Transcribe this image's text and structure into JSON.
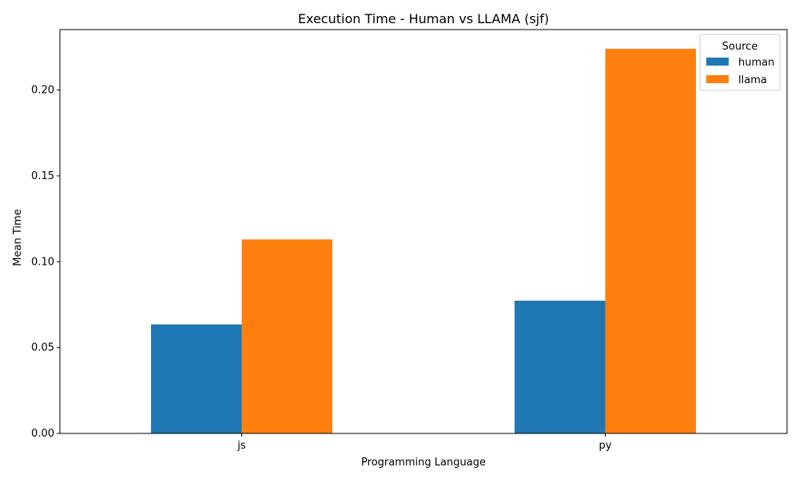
{
  "chart_data": {
    "type": "bar",
    "title": "Execution Time - Human vs LLAMA (sjf)",
    "xlabel": "Programming Language",
    "ylabel": "Mean Time",
    "categories": [
      "js",
      "py"
    ],
    "series": [
      {
        "name": "human",
        "color": "#1f77b4",
        "values": [
          0.0635,
          0.0773
        ]
      },
      {
        "name": "llama",
        "color": "#ff7f0e",
        "values": [
          0.113,
          0.224
        ]
      }
    ],
    "ylim": [
      0,
      0.2352
    ],
    "yticks": [
      0.0,
      0.05,
      0.1,
      0.15,
      0.2
    ],
    "ytick_labels": [
      "0.00",
      "0.05",
      "0.10",
      "0.15",
      "0.20"
    ],
    "legend": {
      "title": "Source",
      "position": "top-right"
    },
    "grid": false
  }
}
